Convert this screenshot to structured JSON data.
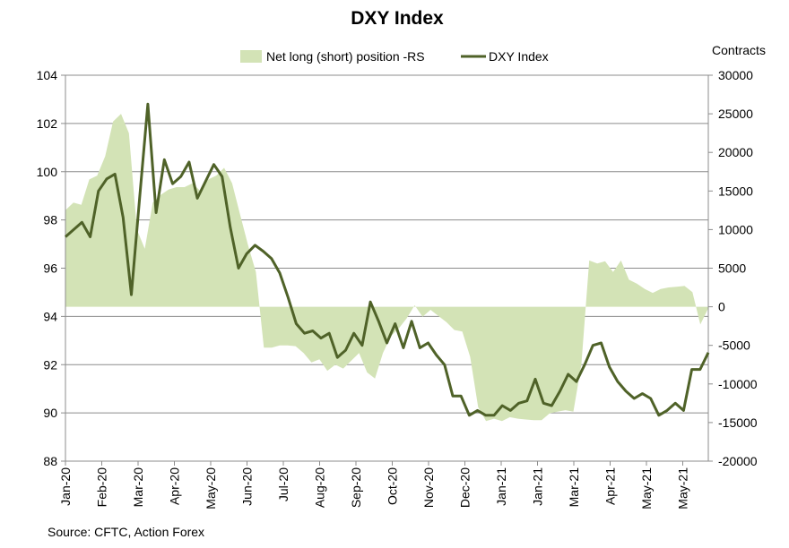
{
  "chart_data": {
    "type": "line",
    "title": "DXY Index",
    "right_axis_label": "Contracts",
    "source": "Source: CFTC, Action Forex",
    "legend": {
      "placement": "top",
      "area_label": "Net long (short) position -RS",
      "line_label": "DXY Index"
    },
    "colors": {
      "area": "#d3e3b6",
      "line": "#4f6228",
      "grid": "#8c8c8c"
    },
    "y_left": {
      "min": 88,
      "max": 104,
      "step": 2,
      "ticks": [
        "88",
        "90",
        "92",
        "94",
        "96",
        "98",
        "100",
        "102",
        "104"
      ]
    },
    "y_right": {
      "min": -20000,
      "max": 30000,
      "step": 5000,
      "ticks": [
        "-20000",
        "-15000",
        "-10000",
        "-5000",
        "0",
        "5000",
        "10000",
        "15000",
        "20000",
        "25000",
        "30000"
      ]
    },
    "x_labels": [
      "Jan-20",
      "Feb-20",
      "Mar-20",
      "Apr-20",
      "May-20",
      "Jun-20",
      "Jul-20",
      "Aug-20",
      "Sep-20",
      "Oct-20",
      "Nov-20",
      "Dec-20",
      "Jan-21",
      "Jan-21",
      "Mar-21",
      "Apr-21",
      "May-21",
      "May-21"
    ],
    "series": [
      {
        "name": "Net long (short) position -RS",
        "axis": "right",
        "kind": "area",
        "values": [
          12500,
          13500,
          13200,
          16500,
          17000,
          19500,
          24000,
          25000,
          22500,
          10000,
          7500,
          13500,
          14500,
          15200,
          15500,
          15500,
          16000,
          15000,
          16500,
          17000,
          18000,
          16000,
          12000,
          8000,
          4500,
          -5300,
          -5300,
          -5000,
          -5000,
          -5100,
          -6000,
          -7200,
          -6800,
          -8300,
          -7500,
          -8000,
          -7000,
          -6000,
          -8500,
          -9300,
          -6000,
          -3800,
          -2800,
          -1500,
          200,
          -1300,
          -400,
          -1200,
          -2000,
          -3000,
          -3200,
          -6500,
          -13000,
          -14800,
          -14500,
          -14800,
          -14300,
          -14500,
          -14600,
          -14700,
          -14700,
          -13800,
          -13600,
          -13400,
          -13600,
          -7500,
          6000,
          5600,
          5900,
          4500,
          6000,
          3500,
          3000,
          2300,
          1800,
          2300,
          2500,
          2600,
          2700,
          1900,
          -2300,
          -200
        ]
      },
      {
        "name": "DXY Index",
        "axis": "left",
        "kind": "line",
        "values": [
          97.3,
          97.6,
          97.9,
          97.3,
          99.2,
          99.7,
          99.9,
          98.1,
          94.9,
          98.9,
          102.8,
          98.3,
          100.5,
          99.5,
          99.8,
          100.4,
          98.9,
          99.6,
          100.3,
          99.8,
          97.7,
          96.0,
          96.6,
          96.95,
          96.7,
          96.4,
          95.8,
          94.8,
          93.7,
          93.3,
          93.4,
          93.1,
          93.3,
          92.3,
          92.6,
          93.3,
          92.8,
          94.6,
          93.8,
          92.9,
          93.7,
          92.7,
          93.8,
          92.7,
          92.9,
          92.4,
          92.0,
          90.7,
          90.7,
          89.9,
          90.1,
          89.9,
          89.9,
          90.3,
          90.1,
          90.4,
          90.5,
          91.4,
          90.4,
          90.3,
          90.9,
          91.6,
          91.3,
          92.0,
          92.8,
          92.9,
          91.9,
          91.3,
          90.9,
          90.6,
          90.8,
          90.6,
          89.9,
          90.1,
          90.4,
          90.1,
          91.8,
          91.8,
          92.5
        ]
      }
    ]
  }
}
